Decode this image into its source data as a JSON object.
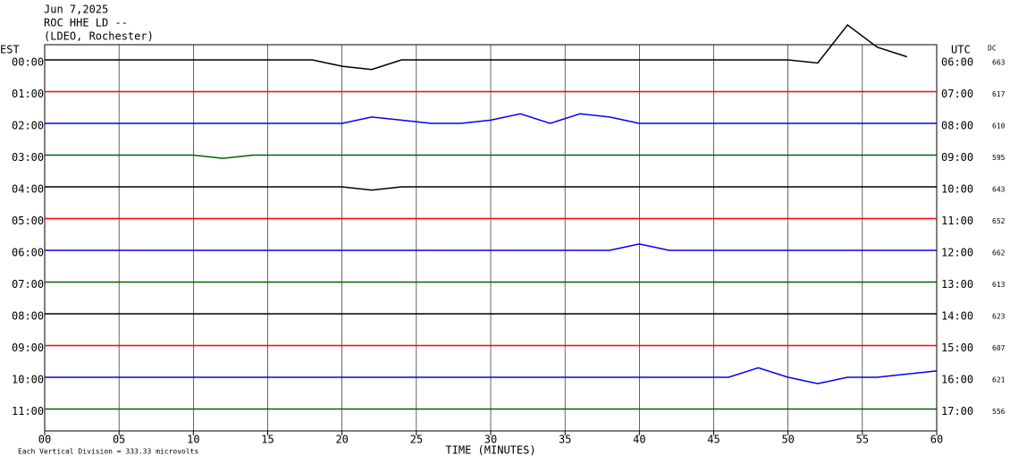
{
  "chart_data": {
    "type": "helicorder",
    "title": "Jun 7,2025",
    "subtitle": [
      "ROC HHE LD --",
      "(LDEO, Rochester)"
    ],
    "left_label": "EST",
    "right_label": "UTC",
    "dc_label": "DC",
    "xlabel": "TIME (MINUTES)",
    "note": "Each Vertical Division =  333.33 microvolts",
    "xlim": [
      0,
      60
    ],
    "xticks": [
      {
        "value": 0,
        "label": "00"
      },
      {
        "value": 5,
        "label": "05"
      },
      10,
      15,
      20,
      25,
      30,
      35,
      40,
      45,
      50,
      55,
      60
    ],
    "grid": true,
    "x": [
      0,
      2,
      4,
      6,
      8,
      10,
      12,
      14,
      16,
      18,
      20,
      22,
      24,
      26,
      28,
      30,
      32,
      34,
      36,
      38,
      40,
      42,
      44,
      46,
      48,
      50,
      52,
      54,
      56,
      58,
      60
    ],
    "series": [
      {
        "name": "00:00",
        "utc": "06:00",
        "dc": 663,
        "color": "#000000",
        "values": [
          0,
          0,
          0,
          0,
          0,
          0,
          0,
          0,
          0,
          0,
          -0.2,
          -0.3,
          0,
          0,
          0,
          0,
          0,
          0,
          0,
          0,
          0,
          0,
          0,
          0,
          0,
          0,
          -0.1,
          1.1,
          0.4,
          0.1,
          null
        ]
      },
      {
        "name": "01:00",
        "utc": "07:00",
        "dc": 617,
        "color": "#ff0000",
        "values": [
          0,
          0,
          0,
          0,
          0,
          0,
          0,
          0,
          0,
          0,
          0,
          0,
          0,
          0,
          0,
          0,
          0,
          0,
          0,
          0,
          0,
          0,
          0,
          0,
          0,
          0,
          0,
          0,
          0,
          0,
          0
        ]
      },
      {
        "name": "02:00",
        "utc": "08:00",
        "dc": 610,
        "color": "#0000ff",
        "values": [
          0,
          0,
          0,
          0,
          0,
          0,
          0,
          0,
          0,
          0,
          0,
          0.2,
          0.1,
          0,
          0,
          0.1,
          0.3,
          0,
          0.3,
          0.2,
          0,
          0,
          0,
          0,
          0,
          0,
          0,
          0,
          0,
          0,
          0
        ]
      },
      {
        "name": "03:00",
        "utc": "09:00",
        "dc": 595,
        "color": "#006400",
        "values": [
          0,
          0,
          0,
          0,
          0,
          0,
          -0.1,
          0,
          0,
          0,
          0,
          0,
          0,
          0,
          0,
          0,
          0,
          0,
          0,
          0,
          0,
          0,
          0,
          0,
          0,
          0,
          0,
          0,
          0,
          0,
          0
        ]
      },
      {
        "name": "04:00",
        "utc": "10:00",
        "dc": 643,
        "color": "#000000",
        "values": [
          0,
          0,
          0,
          0,
          0,
          0,
          0,
          0,
          0,
          0,
          0,
          -0.1,
          0,
          0,
          0,
          0,
          0,
          0,
          0,
          0,
          0,
          0,
          0,
          0,
          0,
          0,
          0,
          0,
          0,
          0,
          0
        ]
      },
      {
        "name": "05:00",
        "utc": "11:00",
        "dc": 652,
        "color": "#ff0000",
        "values": [
          0,
          0,
          0,
          0,
          0,
          0,
          0,
          0,
          0,
          0,
          0,
          0,
          0,
          0,
          0,
          0,
          0,
          0,
          0,
          0,
          0,
          0,
          0,
          0,
          0,
          0,
          0,
          0,
          0,
          0,
          0
        ]
      },
      {
        "name": "06:00",
        "utc": "12:00",
        "dc": 662,
        "color": "#0000ff",
        "values": [
          0,
          0,
          0,
          0,
          0,
          0,
          0,
          0,
          0,
          0,
          0,
          0,
          0,
          0,
          0,
          0,
          0,
          0,
          0,
          0,
          0.2,
          0,
          0,
          0,
          0,
          0,
          0,
          0,
          0,
          0,
          0
        ]
      },
      {
        "name": "07:00",
        "utc": "13:00",
        "dc": 613,
        "color": "#006400",
        "values": [
          0,
          0,
          0,
          0,
          0,
          0,
          0,
          0,
          0,
          0,
          0,
          0,
          0,
          0,
          0,
          0,
          0,
          0,
          0,
          0,
          0,
          0,
          0,
          0,
          0,
          0,
          0,
          0,
          0,
          0,
          0
        ]
      },
      {
        "name": "08:00",
        "utc": "14:00",
        "dc": 623,
        "color": "#000000",
        "values": [
          0,
          0,
          0,
          0,
          0,
          0,
          0,
          0,
          0,
          0,
          0,
          0,
          0,
          0,
          0,
          0,
          0,
          0,
          0,
          0,
          0,
          0,
          0,
          0,
          0,
          0,
          0,
          0,
          0,
          0,
          0
        ]
      },
      {
        "name": "09:00",
        "utc": "15:00",
        "dc": 607,
        "color": "#ff0000",
        "values": [
          0,
          0,
          0,
          0,
          0,
          0,
          0,
          0,
          0,
          0,
          0,
          0,
          0,
          0,
          0,
          0,
          0,
          0,
          0,
          0,
          0,
          0,
          0,
          0,
          0,
          0,
          0,
          0,
          0,
          0,
          0
        ]
      },
      {
        "name": "10:00",
        "utc": "16:00",
        "dc": 621,
        "color": "#0000ff",
        "values": [
          0,
          0,
          0,
          0,
          0,
          0,
          0,
          0,
          0,
          0,
          0,
          0,
          0,
          0,
          0,
          0,
          0,
          0,
          0,
          0,
          0,
          0,
          0,
          0,
          0.3,
          0,
          -0.2,
          0,
          0,
          0.1,
          0.2
        ]
      },
      {
        "name": "11:00",
        "utc": "17:00",
        "dc": 556,
        "color": "#006400",
        "values": [
          0,
          0,
          0,
          0,
          0,
          0,
          0,
          0,
          0,
          0,
          0,
          0,
          0,
          0,
          0,
          0,
          0,
          0,
          0,
          0,
          0,
          0,
          0,
          0,
          0,
          0,
          0,
          0,
          0,
          0,
          0
        ]
      }
    ]
  }
}
